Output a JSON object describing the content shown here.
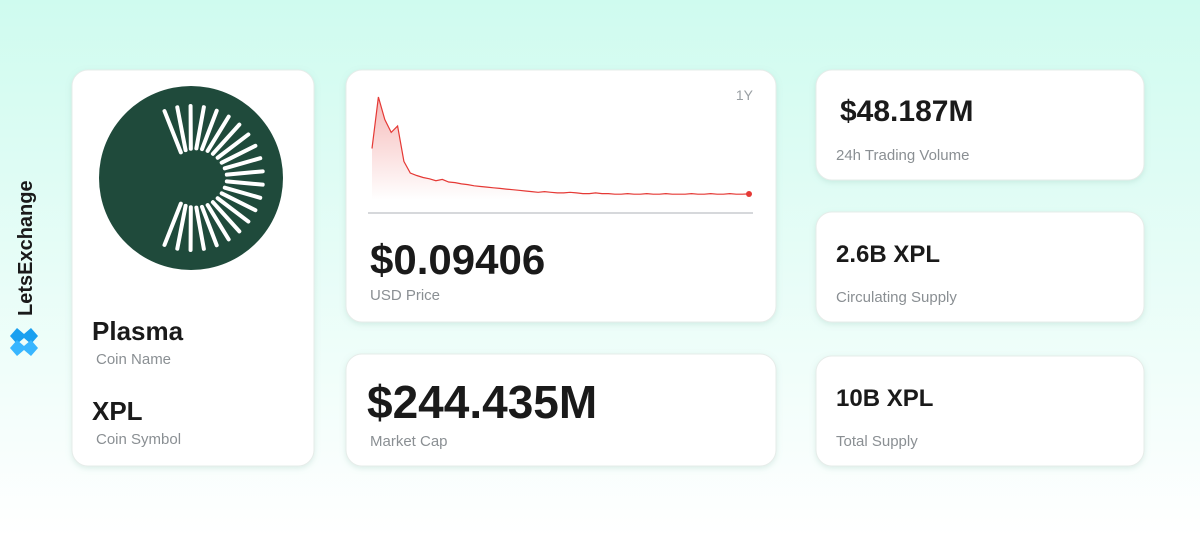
{
  "brand": "LetsExchange",
  "coin": {
    "name": "Plasma",
    "name_label": "Coin Name",
    "symbol": "XPL",
    "symbol_label": "Coin Symbol"
  },
  "price": {
    "value": "$0.09406",
    "label": "USD Price"
  },
  "market_cap": {
    "value": "$244.435M",
    "label": "Market Cap"
  },
  "stats": [
    {
      "value": "$48.187M",
      "label": "24h Trading Volume"
    },
    {
      "value": "2.6B XPL",
      "label": "Circulating Supply"
    },
    {
      "value": "10B XPL",
      "label": "Total Supply"
    }
  ],
  "chart_data": {
    "type": "line",
    "period": "1Y",
    "color": "#e53935",
    "ylim": [
      0,
      1.6
    ],
    "values": [
      0.8,
      1.6,
      1.25,
      1.05,
      1.15,
      0.6,
      0.42,
      0.38,
      0.35,
      0.33,
      0.3,
      0.32,
      0.28,
      0.27,
      0.25,
      0.24,
      0.22,
      0.21,
      0.2,
      0.19,
      0.18,
      0.17,
      0.16,
      0.15,
      0.14,
      0.13,
      0.12,
      0.13,
      0.12,
      0.11,
      0.11,
      0.12,
      0.11,
      0.1,
      0.1,
      0.11,
      0.1,
      0.1,
      0.09,
      0.09,
      0.1,
      0.09,
      0.09,
      0.1,
      0.09,
      0.09,
      0.1,
      0.09,
      0.09,
      0.09,
      0.1,
      0.09,
      0.09,
      0.1,
      0.09,
      0.09,
      0.1,
      0.09,
      0.09,
      0.094
    ]
  }
}
